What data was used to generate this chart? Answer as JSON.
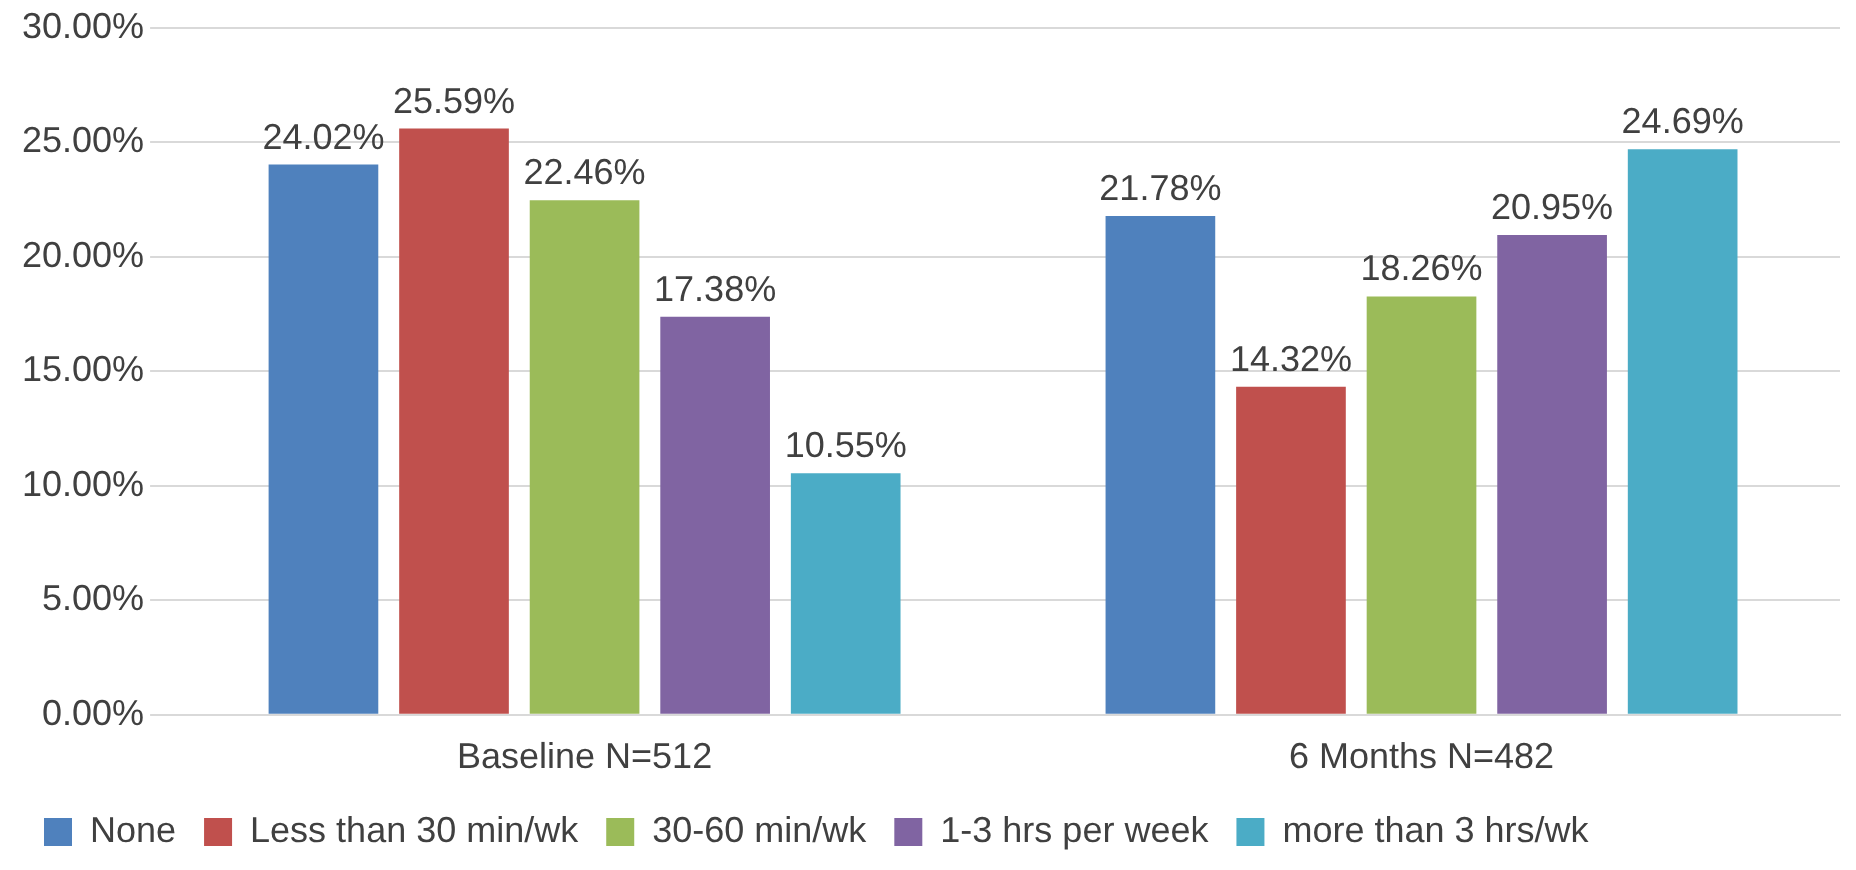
{
  "chart_data": {
    "type": "bar",
    "categories": [
      "Baseline N=512",
      "6 Months N=482"
    ],
    "series": [
      {
        "name": "None",
        "color": "#4f81bd",
        "values": [
          24.02,
          21.78
        ],
        "value_labels": [
          "24.02%",
          "21.78%"
        ]
      },
      {
        "name": "Less than 30 min/wk",
        "color": "#c0504d",
        "values": [
          25.59,
          14.32
        ],
        "value_labels": [
          "25.59%",
          "14.32%"
        ]
      },
      {
        "name": "30-60 min/wk",
        "color": "#9bbb59",
        "values": [
          22.46,
          18.26
        ],
        "value_labels": [
          "22.46%",
          "18.26%"
        ]
      },
      {
        "name": "1-3 hrs per week",
        "color": "#8064a2",
        "values": [
          17.38,
          20.95
        ],
        "value_labels": [
          "17.38%",
          "20.95%"
        ]
      },
      {
        "name": "more than 3 hrs/wk",
        "color": "#4bacc6",
        "values": [
          10.55,
          24.69
        ],
        "value_labels": [
          "10.55%",
          "24.69%"
        ]
      }
    ],
    "ylim": [
      0,
      30
    ],
    "yticks": [
      {
        "value": 0,
        "label": "0.00%"
      },
      {
        "value": 5,
        "label": "5.00%"
      },
      {
        "value": 10,
        "label": "10.00%"
      },
      {
        "value": 15,
        "label": "15.00%"
      },
      {
        "value": 20,
        "label": "20.00%"
      },
      {
        "value": 25,
        "label": "25.00%"
      },
      {
        "value": 30,
        "label": "30.00%"
      }
    ],
    "grid": "y",
    "legend": "bottom"
  }
}
